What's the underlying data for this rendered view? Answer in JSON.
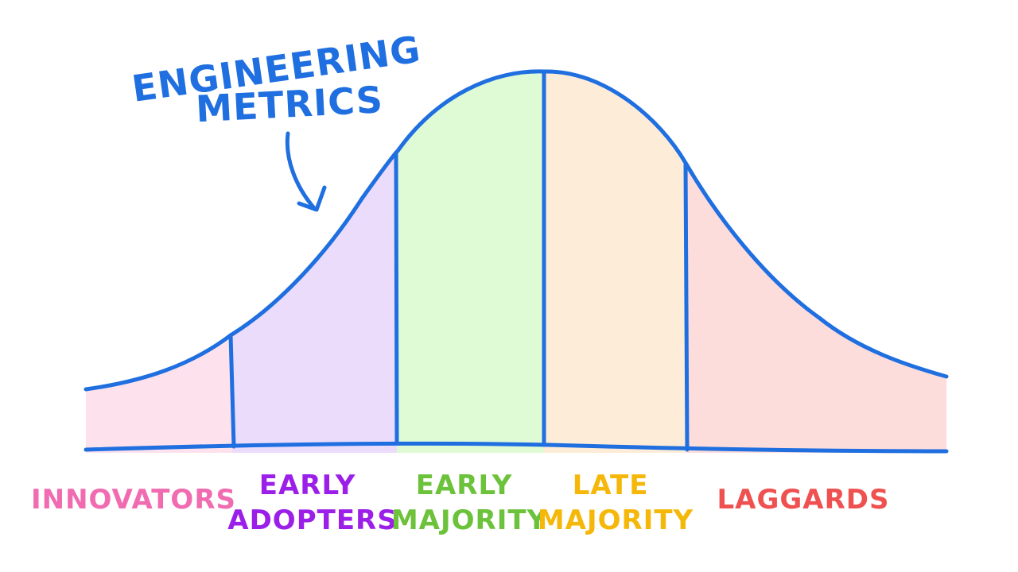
{
  "annotation": {
    "line1": "ENGINEERING",
    "line2": "METRICS"
  },
  "segments": [
    {
      "id": "innovators",
      "lines": [
        "INNOVATORS"
      ],
      "fill": "#fde2ee",
      "text_color": "#f06bb0"
    },
    {
      "id": "early-adopters",
      "lines": [
        "EARLY",
        "ADOPTERS"
      ],
      "fill": "#ecdcfb",
      "text_color": "#9b1fe8"
    },
    {
      "id": "early-majority",
      "lines": [
        "EARLY",
        "MAJORITY"
      ],
      "fill": "#dffbd6",
      "text_color": "#6cc23a"
    },
    {
      "id": "late-majority",
      "lines": [
        "LATE",
        "MAJORITY"
      ],
      "fill": "#fdecd8",
      "text_color": "#f5b80a"
    },
    {
      "id": "laggards",
      "lines": [
        "LAGGARDS"
      ],
      "fill": "#fddcdc",
      "text_color": "#ef5050"
    }
  ],
  "colors": {
    "outline": "#1f6fe0",
    "annotation": "#1f6fe0"
  }
}
